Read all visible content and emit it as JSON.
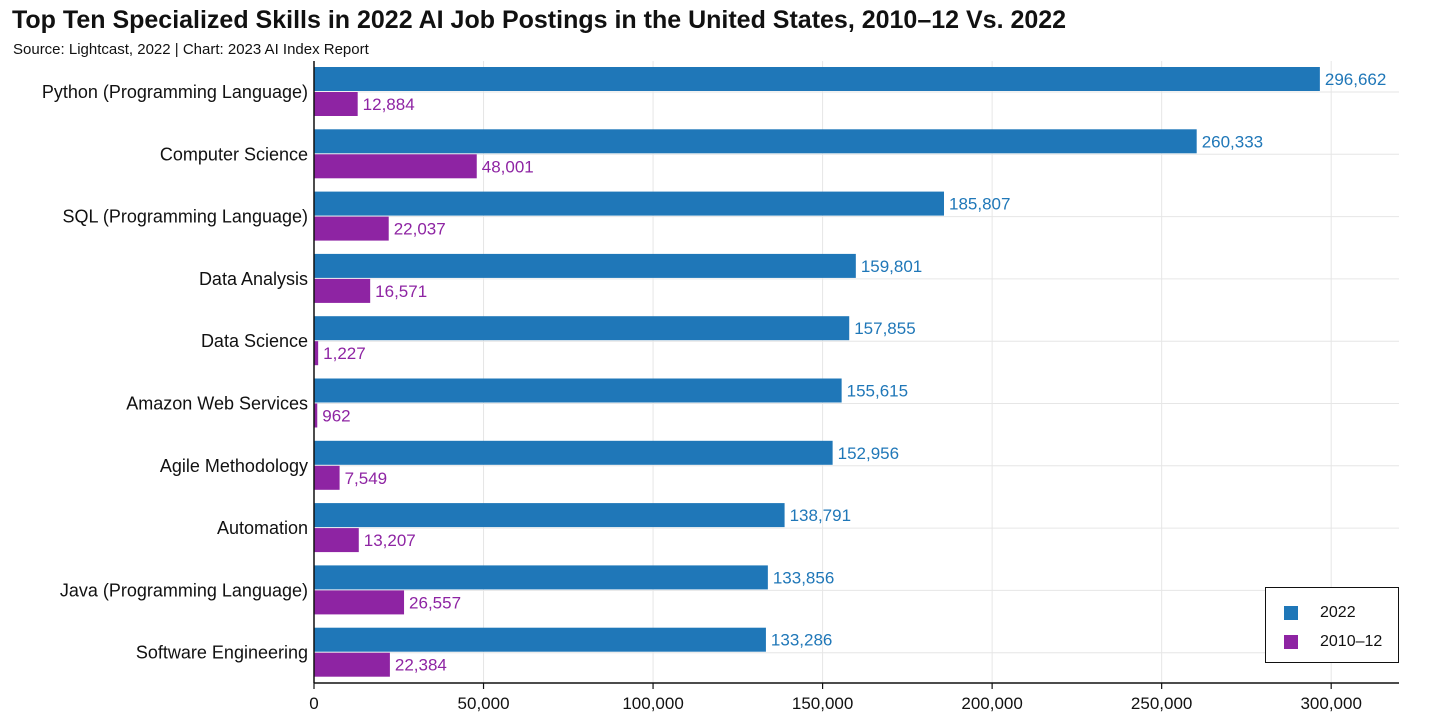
{
  "title": "Top Ten Specialized Skills in 2022 AI Job Postings in the United States, 2010–12 Vs. 2022",
  "subtitle": "Source: Lightcast, 2022 | Chart: 2023 AI Index Report",
  "colors": {
    "series_2022": "#1f77b8",
    "series_2010_12": "#8e24a3",
    "grid": "#e6e6e6",
    "axis": "#111111"
  },
  "legend": {
    "items": [
      {
        "label": "2022"
      },
      {
        "label": "2010–12"
      }
    ],
    "placement": "bottom-right"
  },
  "chart_data": {
    "type": "bar",
    "orientation": "horizontal",
    "title": "Top Ten Specialized Skills in 2022 AI Job Postings in the United States, 2010–12 Vs. 2022",
    "categories": [
      "Python (Programming Language)",
      "Computer Science",
      "SQL (Programming Language)",
      "Data Analysis",
      "Data Science",
      "Amazon Web Services",
      "Agile Methodology",
      "Automation",
      "Java (Programming Language)",
      "Software Engineering"
    ],
    "series": [
      {
        "name": "2022",
        "values": [
          296662,
          260333,
          185807,
          159801,
          157855,
          155615,
          152956,
          138791,
          133856,
          133286
        ],
        "labels": [
          "296,662",
          "260,333",
          "185,807",
          "159,801",
          "157,855",
          "155,615",
          "152,956",
          "138,791",
          "133,856",
          "133,286"
        ]
      },
      {
        "name": "2010–12",
        "values": [
          12884,
          48001,
          22037,
          16571,
          1227,
          962,
          7549,
          13207,
          26557,
          22384
        ],
        "labels": [
          "12,884",
          "48,001",
          "22,037",
          "16,571",
          "1,227",
          "962",
          "7,549",
          "13,207",
          "26,557",
          "22,384"
        ]
      }
    ],
    "xlim": [
      0,
      320000
    ],
    "xticks": [
      0,
      50000,
      100000,
      150000,
      200000,
      250000,
      300000
    ],
    "xtick_labels": [
      "0",
      "50,000",
      "100,000",
      "150,000",
      "200,000",
      "250,000",
      "300,000"
    ],
    "xlabel": "",
    "ylabel": "",
    "grid": true
  }
}
